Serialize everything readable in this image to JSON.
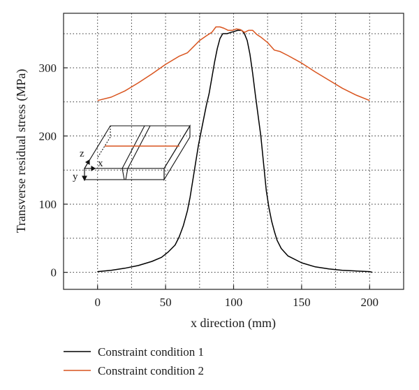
{
  "chart_data": {
    "type": "line",
    "title": "",
    "xlabel": "x direction (mm)",
    "ylabel": "Transverse residual stress (MPa)",
    "xlim": [
      -25,
      225
    ],
    "ylim": [
      -25,
      380
    ],
    "x_ticks": [
      0,
      50,
      100,
      150,
      200
    ],
    "y_ticks": [
      0,
      100,
      200,
      300
    ],
    "grid": true,
    "grid_style": "dotted",
    "legend_position": "bottom-left, below plot",
    "series": [
      {
        "name": "Constraint condition 1",
        "color": "#000000",
        "x": [
          0,
          10,
          20,
          30,
          40,
          47,
          52,
          57,
          60,
          63,
          66,
          68,
          70,
          72,
          74,
          76,
          78,
          80,
          82,
          84,
          86,
          88,
          90,
          92,
          95,
          98,
          100,
          103,
          106,
          108,
          110,
          112,
          114,
          116,
          118,
          120,
          122,
          124,
          126,
          128,
          130,
          132,
          135,
          140,
          150,
          160,
          170,
          180,
          190,
          200,
          202
        ],
        "y": [
          1,
          3,
          6,
          10,
          16,
          22,
          30,
          40,
          52,
          68,
          90,
          110,
          135,
          160,
          185,
          205,
          225,
          245,
          262,
          285,
          308,
          328,
          343,
          350,
          350,
          352,
          353,
          355,
          355,
          350,
          340,
          320,
          292,
          260,
          230,
          200,
          160,
          120,
          95,
          75,
          60,
          47,
          35,
          24,
          14,
          8,
          5,
          3,
          2,
          1,
          0
        ]
      },
      {
        "name": "Constraint condition 2",
        "color": "#d9541e",
        "x": [
          0,
          10,
          20,
          30,
          40,
          50,
          60,
          66,
          70,
          75,
          80,
          84,
          87,
          90,
          93,
          96,
          99,
          102,
          105,
          108,
          111,
          114,
          117,
          120,
          125,
          130,
          134,
          140,
          150,
          160,
          170,
          180,
          190,
          200
        ],
        "y": [
          252,
          257,
          266,
          278,
          291,
          305,
          317,
          322,
          330,
          340,
          347,
          352,
          360,
          360,
          358,
          355,
          355,
          357,
          356,
          352,
          355,
          355,
          349,
          345,
          337,
          326,
          324,
          318,
          307,
          294,
          282,
          270,
          260,
          252
        ]
      }
    ],
    "inset_labels": {
      "z": "z",
      "x": "x",
      "y": "y"
    }
  }
}
